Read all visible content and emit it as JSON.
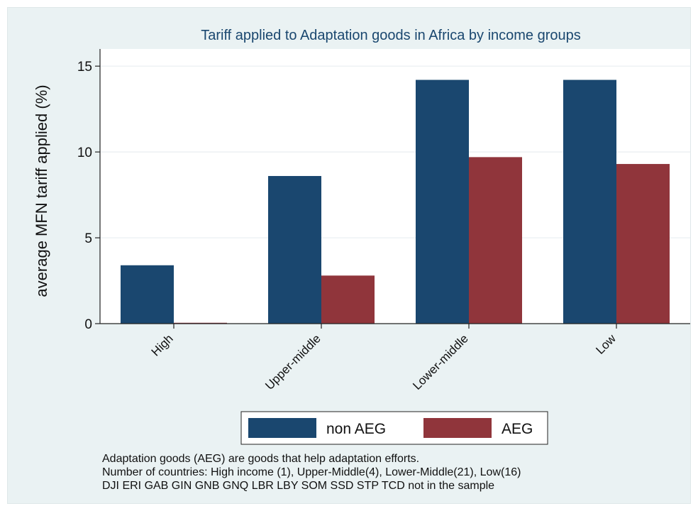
{
  "chart_data": {
    "type": "bar",
    "title": "Tariff applied to Adaptation goods in Africa by income groups",
    "xlabel": "",
    "ylabel": "average MFN tariff applied (%)",
    "categories": [
      "High",
      "Upper-middle",
      "Lower-middle",
      "Low"
    ],
    "series": [
      {
        "name": "non AEG",
        "color": "#1a476f",
        "values": [
          3.4,
          8.6,
          14.2,
          14.2
        ]
      },
      {
        "name": "AEG",
        "color": "#90353b",
        "values": [
          0.05,
          2.8,
          9.7,
          9.3
        ]
      }
    ],
    "ylim": [
      0,
      16
    ],
    "yticks": [
      0,
      5,
      10,
      15
    ],
    "grid": true,
    "legend_position": "bottom"
  },
  "notes": [
    "Adaptation goods (AEG) are goods that help adaptation efforts.",
    "Number of countries: High income (1), Upper-Middle(4), Lower-Middle(21), Low(16)",
    "DJI ERI GAB GIN GNB GNQ LBR LBY SOM SSD STP TCD not in the sample"
  ]
}
